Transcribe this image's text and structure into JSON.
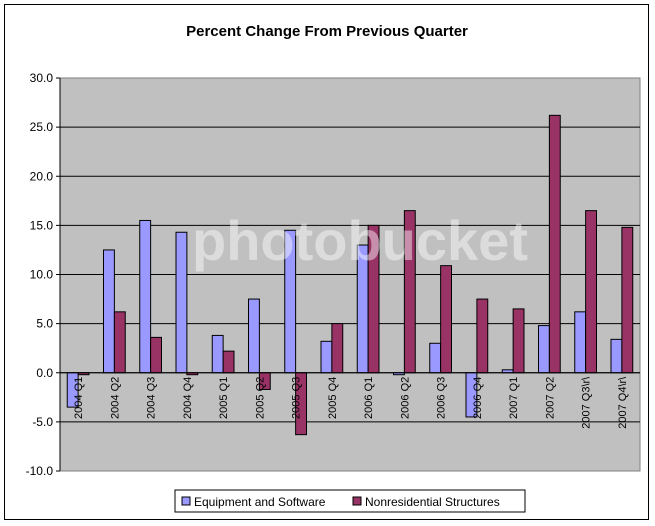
{
  "chart_data": {
    "type": "bar",
    "title": "Percent Change From Previous Quarter",
    "xlabel": "",
    "ylabel": "",
    "ylim": [
      -10,
      30
    ],
    "yticks": [
      "30.0",
      "25.0",
      "20.0",
      "15.0",
      "10.0",
      "5.0",
      "0.0",
      "-5.0",
      "-10.0"
    ],
    "grid": true,
    "legend_position": "bottom",
    "categories": [
      "2004 Q1",
      "2004 Q2",
      "2004 Q3",
      "2004 Q4",
      "2005 Q1",
      "2005 Q2",
      "2005 Q3",
      "2005 Q4",
      "2006 Q1",
      "2006 Q2",
      "2006 Q3",
      "2006 Q4",
      "2007 Q1",
      "2007 Q2",
      "2007 Q3\\r\\",
      "2007 Q4\\r\\"
    ],
    "series": [
      {
        "name": "Equipment and Software",
        "color": "#9999ff",
        "values": [
          -3.5,
          12.5,
          15.5,
          14.3,
          3.8,
          7.5,
          14.5,
          3.2,
          13.0,
          -0.2,
          3.0,
          -4.5,
          0.3,
          4.8,
          6.2,
          3.4
        ]
      },
      {
        "name": "Nonresidential Structures",
        "color": "#993366",
        "values": [
          -0.2,
          6.2,
          3.6,
          -0.2,
          2.2,
          -1.7,
          -6.3,
          5.0,
          15.0,
          16.5,
          10.9,
          7.5,
          6.5,
          26.2,
          16.5,
          14.8
        ]
      }
    ],
    "watermark": "photobucket"
  }
}
